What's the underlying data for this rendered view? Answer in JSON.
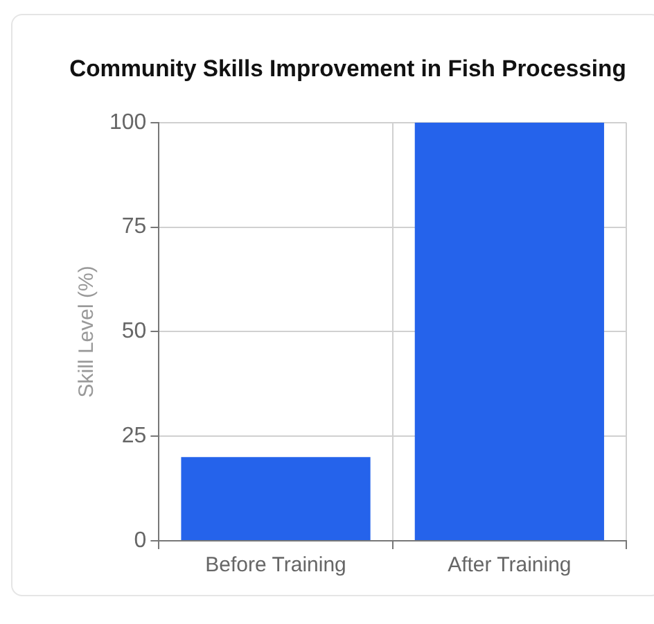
{
  "chart_data": {
    "type": "bar",
    "title": "Community Skills Improvement in Fish Processing",
    "ylabel": "Skill Level (%)",
    "categories": [
      "Before Training",
      "After Training"
    ],
    "values": [
      20,
      100
    ],
    "color": "#2563eb",
    "ylim": [
      0,
      100
    ],
    "yticks": [
      0,
      25,
      50,
      75,
      100
    ],
    "grid": true
  }
}
